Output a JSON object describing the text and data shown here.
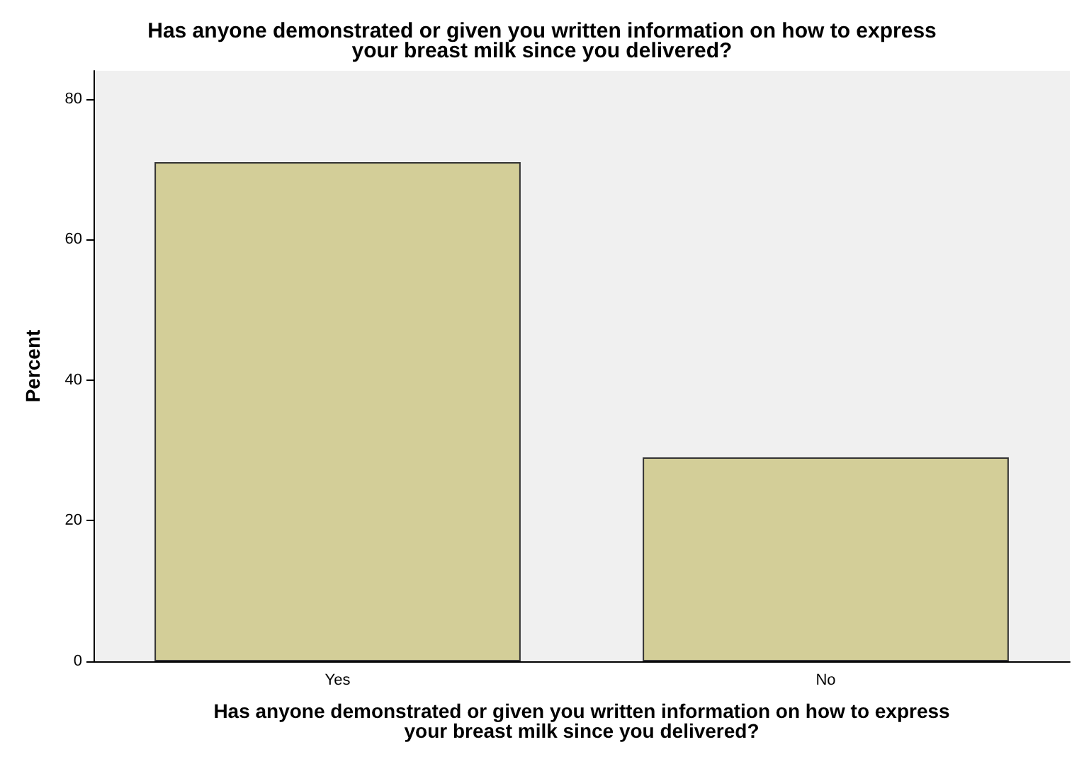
{
  "chart_data": {
    "type": "bar",
    "title": "Has anyone demonstrated or given you written information on how to express\nyour breast milk since you delivered?",
    "xlabel": "Has anyone demonstrated or given you written information on how to express\nyour breast milk since you delivered?",
    "ylabel": "Percent",
    "categories": [
      "Yes",
      "No"
    ],
    "values": [
      71,
      29
    ],
    "color": "#d3ce98",
    "ylim": [
      0,
      84
    ],
    "yticks": [
      0,
      20,
      40,
      60,
      80
    ],
    "grid": false
  }
}
